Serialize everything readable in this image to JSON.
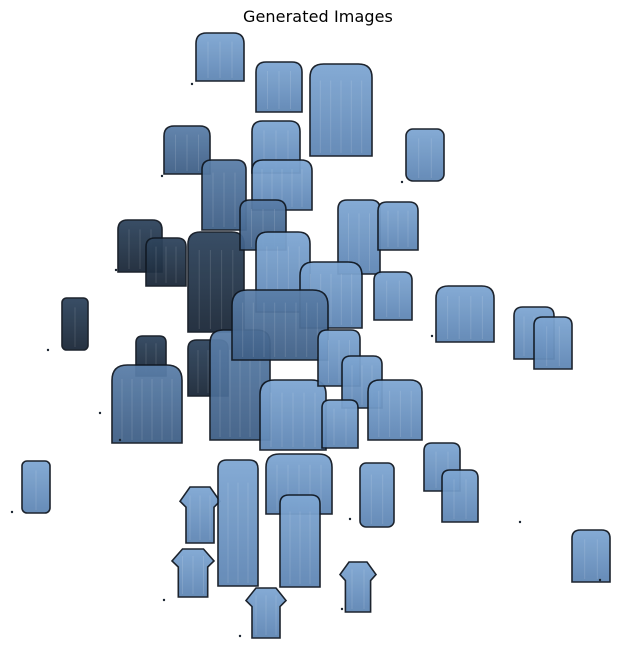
{
  "figure": {
    "title": "Generated Images"
  }
}
